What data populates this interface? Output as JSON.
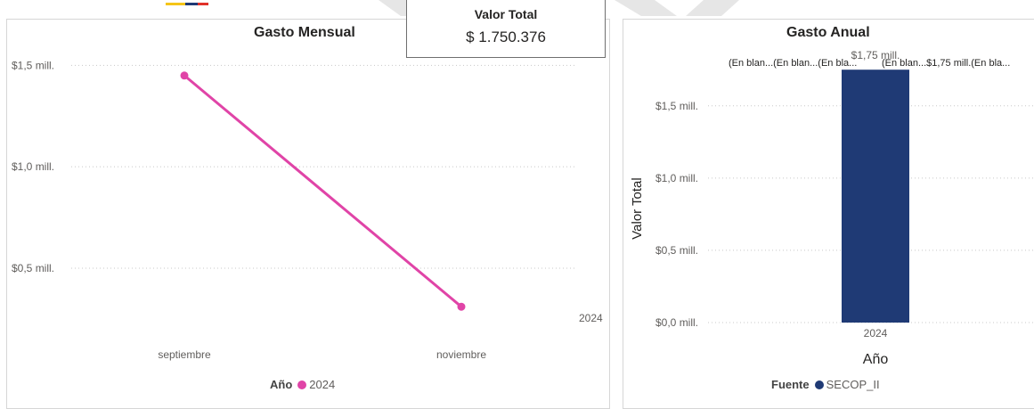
{
  "kpi": {
    "label": "Valor Total",
    "value": "$ 1.750.376"
  },
  "colors": {
    "line": "#e044a7",
    "bar": "#1f3a75",
    "grid": "#c8c8c8",
    "logo_yellow": "#f5c518",
    "logo_blue": "#1f3a75",
    "logo_red": "#e0312a",
    "deco": "#e6e6e6"
  },
  "chart_data": [
    {
      "type": "line",
      "title": "Gasto Mensual",
      "categories": [
        "septiembre",
        "noviembre"
      ],
      "series": [
        {
          "name": "2024",
          "values": [
            1.45,
            0.31
          ]
        }
      ],
      "y_ticks": [
        {
          "value": 1.5,
          "label": "$1,5 mill."
        },
        {
          "value": 1.0,
          "label": "$1,0 mill."
        },
        {
          "value": 0.5,
          "label": "$0,5 mill."
        }
      ],
      "ylim": [
        0.1,
        1.55
      ],
      "grid": true,
      "extra_label": "2024",
      "legend": {
        "title": "Año",
        "items": [
          "2024"
        ],
        "position": "bottom-center"
      }
    },
    {
      "type": "bar",
      "title": "Gasto Anual",
      "categories": [
        "2024"
      ],
      "values": [
        1.75
      ],
      "data_label": "$1,75 mill.",
      "top_labels": [
        "(En blan...(En blan...(En bla...",
        "(En blan...$1,75 mill.(En bla..."
      ],
      "xlabel": "Año",
      "ylabel": "Valor Total",
      "y_ticks": [
        {
          "value": 1.5,
          "label": "$1,5 mill."
        },
        {
          "value": 1.0,
          "label": "$1,0 mill."
        },
        {
          "value": 0.5,
          "label": "$0,5 mill."
        },
        {
          "value": 0.0,
          "label": "$0,0 mill."
        }
      ],
      "ylim": [
        0,
        1.85
      ],
      "grid": true,
      "legend": {
        "title": "Fuente",
        "items": [
          "SECOP_II"
        ],
        "position": "bottom-center"
      }
    }
  ]
}
